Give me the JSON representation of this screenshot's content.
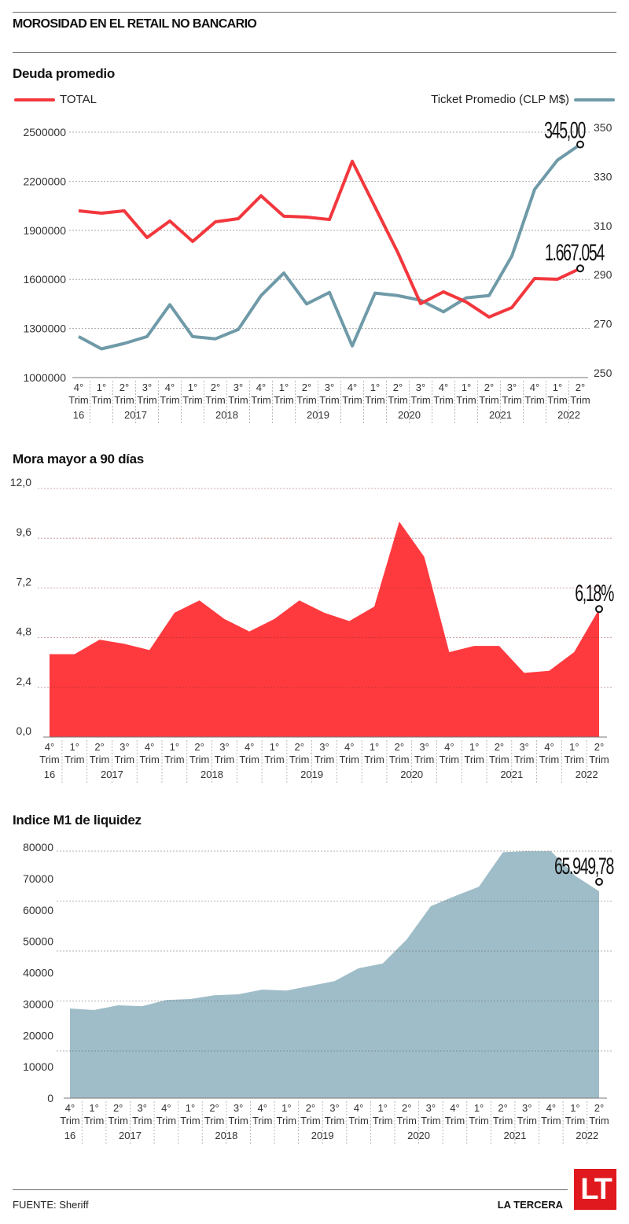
{
  "header": {
    "title": "MOROSIDAD EN EL RETAIL NO BANCARIO"
  },
  "footer": {
    "source": "FUENTE: Sheriff",
    "brand": "LA TERCERA",
    "logo_text": "LT"
  },
  "x_axis": {
    "quarters": [
      "4°",
      "1°",
      "2°",
      "3°",
      "4°",
      "1°",
      "2°",
      "3°",
      "4°",
      "1°",
      "2°",
      "3°",
      "4°",
      "1°",
      "2°",
      "3°",
      "4°",
      "1°",
      "2°",
      "3°",
      "4°",
      "1°",
      "2°"
    ],
    "trim_label": "Trim",
    "year_groups": [
      {
        "label": "16",
        "start": 0,
        "end": 0
      },
      {
        "label": "2017",
        "start": 1,
        "end": 4
      },
      {
        "label": "2018",
        "start": 5,
        "end": 8
      },
      {
        "label": "2019",
        "start": 9,
        "end": 12
      },
      {
        "label": "2020",
        "start": 13,
        "end": 16
      },
      {
        "label": "2021",
        "start": 17,
        "end": 20
      },
      {
        "label": "2022",
        "start": 21,
        "end": 22
      }
    ]
  },
  "colors": {
    "red": "#f2373d",
    "blue": "#6f9aa8",
    "area_red": "#ff3a3f",
    "area_blue": "#9fbdc8"
  },
  "chart_data": [
    {
      "type": "line",
      "title": "Deuda promedio",
      "categories": [
        "4T 2016",
        "1T 2017",
        "2T 2017",
        "3T 2017",
        "4T 2017",
        "1T 2018",
        "2T 2018",
        "3T 2018",
        "4T 2018",
        "1T 2019",
        "2T 2019",
        "3T 2019",
        "4T 2019",
        "1T 2020",
        "2T 2020",
        "3T 2020",
        "4T 2020",
        "1T 2021",
        "2T 2021",
        "3T 2021",
        "4T 2021",
        "1T 2022",
        "2T 2022"
      ],
      "series": [
        {
          "name": "TOTAL",
          "axis": "left",
          "color": "#f2373d",
          "values": [
            2019000,
            2005000,
            2019000,
            1856000,
            1957000,
            1832000,
            1952000,
            1971000,
            2111000,
            1986000,
            1981000,
            1966000,
            2322000,
            2043000,
            1764000,
            1452000,
            1524000,
            1462000,
            1370000,
            1428000,
            1606000,
            1601000,
            1667054
          ]
        },
        {
          "name": "Ticket Promedio (CLP M$)",
          "axis": "right",
          "color": "#6f9aa8",
          "values": [
            266.7,
            261.7,
            263.9,
            266.7,
            279.7,
            266.7,
            265.8,
            269.6,
            283.4,
            292.6,
            280.0,
            284.7,
            262.9,
            284.4,
            283.4,
            281.5,
            276.8,
            282.5,
            283.4,
            299.5,
            326.7,
            338.6,
            345.0
          ]
        }
      ],
      "y_left": {
        "ticks": [
          "2500000",
          "2200000",
          "1900000",
          "1600000",
          "1300000",
          "1000000"
        ],
        "ylim": [
          1000000,
          2500000
        ]
      },
      "y_right": {
        "ticks": [
          "350",
          "330",
          "310",
          "290",
          "270",
          "250"
        ],
        "ylim": [
          250,
          350
        ]
      },
      "annotations": [
        {
          "text": "345,00",
          "series": 1
        },
        {
          "text": "1.667.054",
          "series": 0
        }
      ],
      "legend": "top",
      "grid": true
    },
    {
      "type": "area",
      "title": "Mora mayor a 90 días",
      "categories": [
        "4T 2016",
        "1T 2017",
        "2T 2017",
        "3T 2017",
        "4T 2017",
        "1T 2018",
        "2T 2018",
        "3T 2018",
        "4T 2018",
        "1T 2019",
        "2T 2019",
        "3T 2019",
        "4T 2019",
        "1T 2020",
        "2T 2020",
        "3T 2020",
        "4T 2020",
        "1T 2021",
        "2T 2021",
        "3T 2021",
        "4T 2021",
        "1T 2022",
        "2T 2022"
      ],
      "values": [
        4.0,
        4.0,
        4.7,
        4.5,
        4.2,
        6.0,
        6.6,
        5.7,
        5.1,
        5.7,
        6.6,
        6.0,
        5.6,
        6.3,
        10.4,
        8.7,
        4.1,
        4.4,
        4.4,
        3.1,
        3.2,
        4.1,
        6.18
      ],
      "y_ticks": [
        "12,0",
        "9,6",
        "7,2",
        "4,8",
        "2,4",
        "0,0"
      ],
      "ylim": [
        0,
        12
      ],
      "annotations": [
        {
          "text": "6,18%"
        }
      ],
      "grid": true
    },
    {
      "type": "area",
      "title": "Indice M1 de liquidez",
      "categories": [
        "4T 2016",
        "1T 2017",
        "2T 2017",
        "3T 2017",
        "4T 2017",
        "1T 2018",
        "2T 2018",
        "3T 2018",
        "4T 2018",
        "1T 2019",
        "2T 2019",
        "3T 2019",
        "4T 2019",
        "1T 2020",
        "2T 2020",
        "3T 2020",
        "4T 2020",
        "1T 2021",
        "2T 2021",
        "3T 2021",
        "4T 2021",
        "1T 2022",
        "2T 2022"
      ],
      "values": [
        28600,
        28100,
        29600,
        29300,
        31300,
        31600,
        32800,
        33100,
        34600,
        34300,
        35800,
        37300,
        41400,
        42900,
        50600,
        61200,
        64400,
        67400,
        78400,
        78700,
        78700,
        70900,
        65949.78
      ],
      "y_ticks": [
        "80000",
        "70000",
        "60000",
        "50000",
        "40000",
        "30000",
        "20000",
        "10000",
        "0"
      ],
      "ylim": [
        0,
        80000
      ],
      "annotations": [
        {
          "text": "65.949,78"
        }
      ],
      "grid": true
    }
  ]
}
